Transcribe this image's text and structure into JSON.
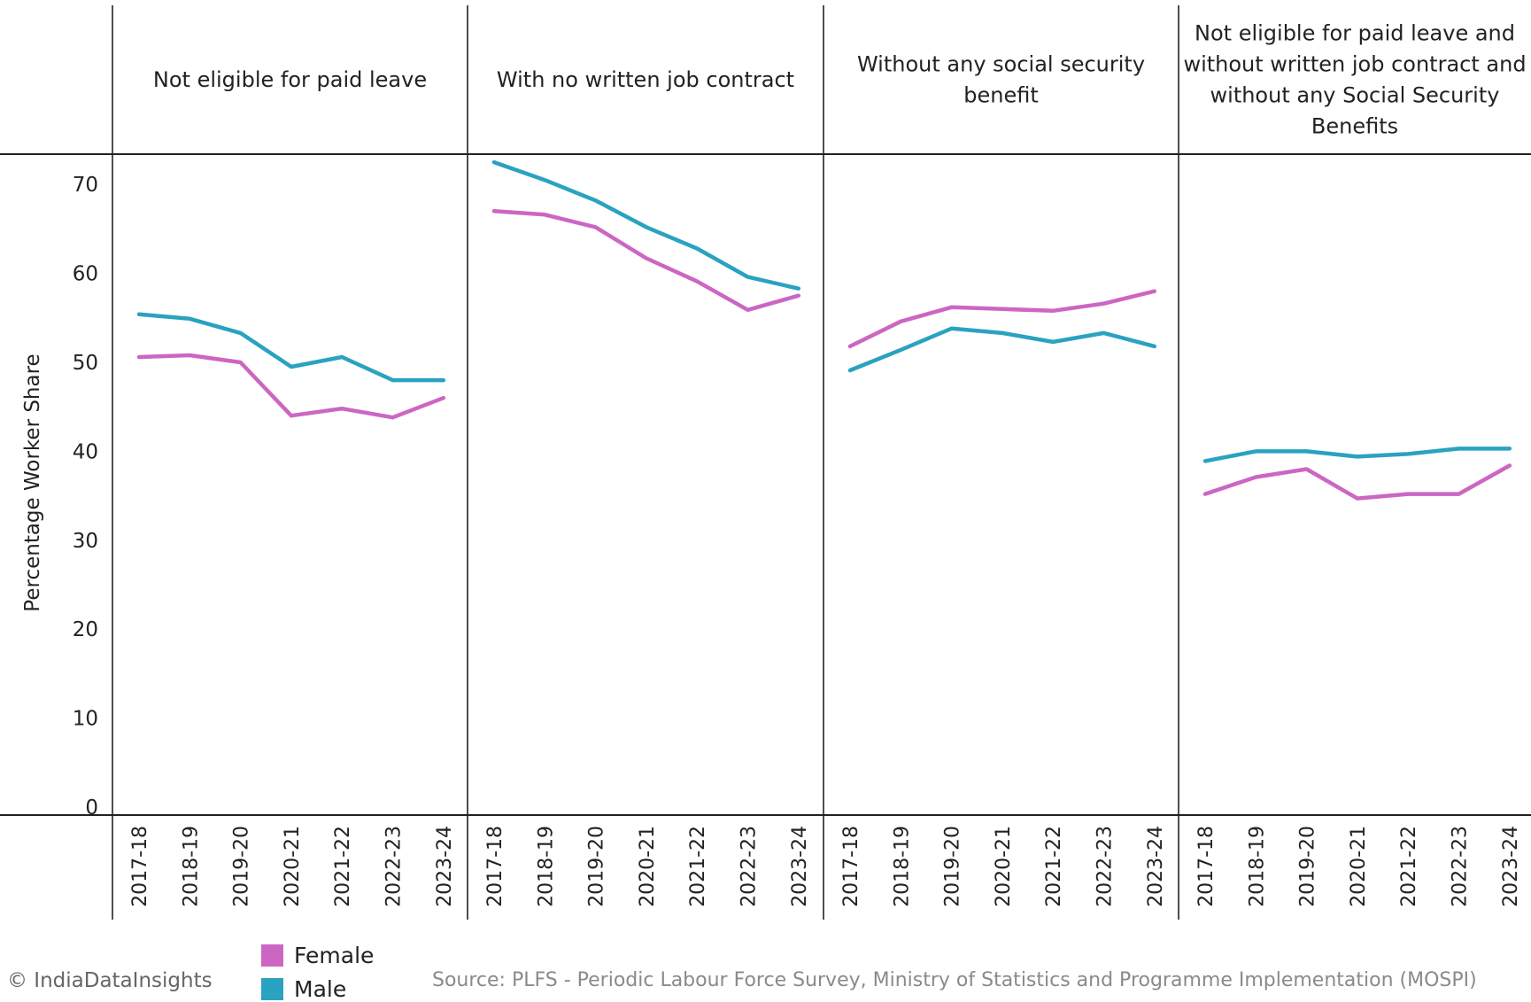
{
  "chart_data": {
    "type": "line",
    "ylabel": "Percentage Worker Share",
    "ylim": [
      0,
      75
    ],
    "yticks": [
      0,
      10,
      20,
      30,
      40,
      50,
      60,
      70
    ],
    "x": [
      "2017-18",
      "2018-19",
      "2019-20",
      "2020-21",
      "2021-22",
      "2022-23",
      "2023-24"
    ],
    "panels": [
      {
        "title": "Not eligible for paid leave",
        "series": [
          {
            "name": "Female",
            "values": [
              50.6,
              50.8,
              50.0,
              44.0,
              44.8,
              43.8,
              46.0
            ]
          },
          {
            "name": "Male",
            "values": [
              55.4,
              54.9,
              53.3,
              49.5,
              50.6,
              48.0,
              48.0
            ]
          }
        ]
      },
      {
        "title": "With no written job contract",
        "series": [
          {
            "name": "Female",
            "values": [
              67.0,
              66.6,
              65.2,
              61.7,
              59.1,
              55.9,
              57.5
            ]
          },
          {
            "name": "Male",
            "values": [
              72.5,
              70.5,
              68.2,
              65.2,
              62.8,
              59.6,
              58.3
            ]
          }
        ]
      },
      {
        "title": "Without any social security benefit",
        "series": [
          {
            "name": "Female",
            "values": [
              51.8,
              54.6,
              56.2,
              56.0,
              55.8,
              56.6,
              58.0
            ]
          },
          {
            "name": "Male",
            "values": [
              49.1,
              51.4,
              53.8,
              53.3,
              52.3,
              53.3,
              51.8
            ]
          }
        ]
      },
      {
        "title": "Not eligible for paid leave and without written job contract and without any Social Security Benefits",
        "series": [
          {
            "name": "Female",
            "values": [
              35.2,
              37.1,
              38.0,
              34.7,
              35.2,
              35.2,
              38.4
            ]
          },
          {
            "name": "Male",
            "values": [
              38.9,
              40.0,
              40.0,
              39.4,
              39.7,
              40.3,
              40.3
            ]
          }
        ]
      }
    ],
    "legend": [
      {
        "name": "Female",
        "color": "#cc66c2"
      },
      {
        "name": "Male",
        "color": "#2aa2c0"
      }
    ]
  },
  "footer": {
    "copyright": "© IndiaDataInsights",
    "source": "Source: PLFS - Periodic Labour Force Survey, Ministry of Statistics and Programme Implementation (MOSPI)"
  }
}
